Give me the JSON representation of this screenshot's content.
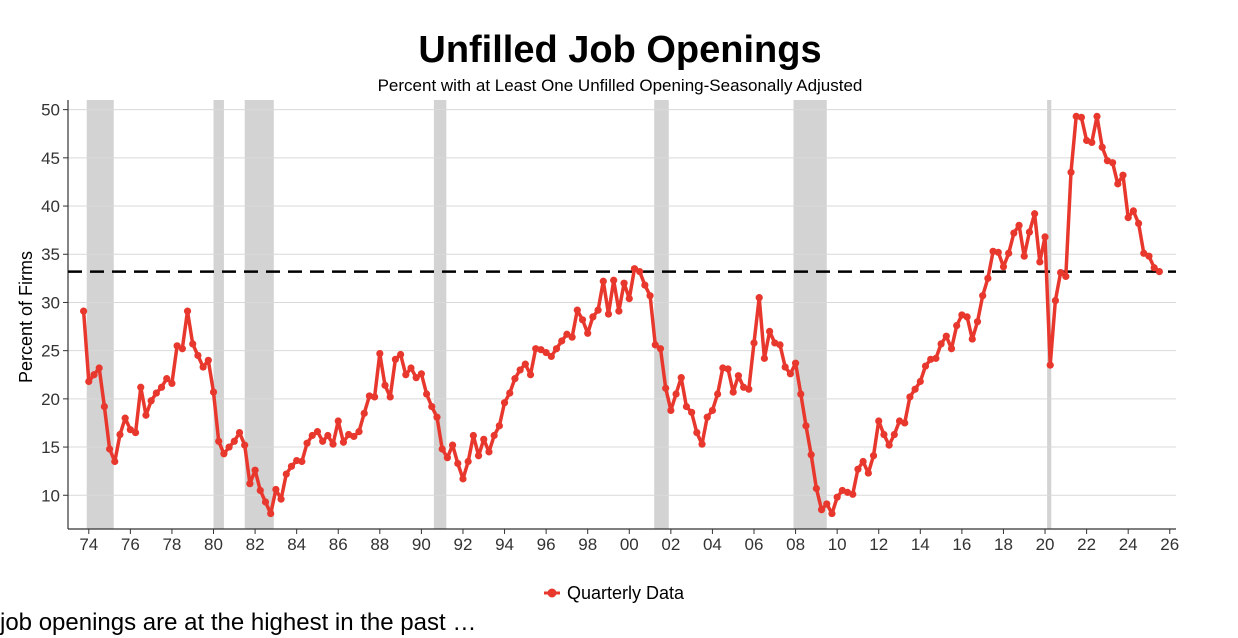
{
  "caption": "job openings are at the highest in the past …",
  "chart_data": {
    "type": "line",
    "title": "Unfilled Job Openings",
    "subtitle": "Percent with at Least One Unfilled Opening-Seasonally Adjusted",
    "ylabel": "Percent of Firms",
    "xlabel": "",
    "ylim": [
      6.5,
      51
    ],
    "xlim": [
      1973.0,
      2026.3
    ],
    "yticks": [
      10,
      15,
      20,
      25,
      30,
      35,
      40,
      45,
      50
    ],
    "xticks": [
      {
        "value": 1974,
        "label": "74"
      },
      {
        "value": 1976,
        "label": "76"
      },
      {
        "value": 1978,
        "label": "78"
      },
      {
        "value": 1980,
        "label": "80"
      },
      {
        "value": 1982,
        "label": "82"
      },
      {
        "value": 1984,
        "label": "84"
      },
      {
        "value": 1986,
        "label": "86"
      },
      {
        "value": 1988,
        "label": "88"
      },
      {
        "value": 1990,
        "label": "90"
      },
      {
        "value": 1992,
        "label": "92"
      },
      {
        "value": 1994,
        "label": "94"
      },
      {
        "value": 1996,
        "label": "96"
      },
      {
        "value": 1998,
        "label": "98"
      },
      {
        "value": 2000,
        "label": "00"
      },
      {
        "value": 2002,
        "label": "02"
      },
      {
        "value": 2004,
        "label": "04"
      },
      {
        "value": 2006,
        "label": "06"
      },
      {
        "value": 2008,
        "label": "08"
      },
      {
        "value": 2010,
        "label": "10"
      },
      {
        "value": 2012,
        "label": "12"
      },
      {
        "value": 2014,
        "label": "14"
      },
      {
        "value": 2016,
        "label": "16"
      },
      {
        "value": 2018,
        "label": "18"
      },
      {
        "value": 2020,
        "label": "20"
      },
      {
        "value": 2022,
        "label": "22"
      },
      {
        "value": 2024,
        "label": "24"
      },
      {
        "value": 2026,
        "label": "26"
      }
    ],
    "grid": "horizontal",
    "legend_position": "bottom",
    "reference_line": {
      "y": 33.2,
      "style": "dashed",
      "color": "#000000"
    },
    "recessions": [
      [
        1973.9,
        1975.2
      ],
      [
        1980.0,
        1980.5
      ],
      [
        1981.5,
        1982.9
      ],
      [
        1990.6,
        1991.2
      ],
      [
        2001.2,
        2001.9
      ],
      [
        2007.9,
        2009.5
      ],
      [
        2020.1,
        2020.3
      ]
    ],
    "colors": {
      "series": "#e8382e",
      "recession": "#d3d3d3",
      "grid": "#d9d9d9"
    },
    "series": [
      {
        "name": "Quarterly Data",
        "x": [
          1973.75,
          1974.0,
          1974.25,
          1974.5,
          1974.75,
          1975.0,
          1975.25,
          1975.5,
          1975.75,
          1976.0,
          1976.25,
          1976.5,
          1976.75,
          1977.0,
          1977.25,
          1977.5,
          1977.75,
          1978.0,
          1978.25,
          1978.5,
          1978.75,
          1979.0,
          1979.25,
          1979.5,
          1979.75,
          1980.0,
          1980.25,
          1980.5,
          1980.75,
          1981.0,
          1981.25,
          1981.5,
          1981.75,
          1982.0,
          1982.25,
          1982.5,
          1982.75,
          1983.0,
          1983.25,
          1983.5,
          1983.75,
          1984.0,
          1984.25,
          1984.5,
          1984.75,
          1985.0,
          1985.25,
          1985.5,
          1985.75,
          1986.0,
          1986.25,
          1986.5,
          1986.75,
          1987.0,
          1987.25,
          1987.5,
          1987.75,
          1988.0,
          1988.25,
          1988.5,
          1988.75,
          1989.0,
          1989.25,
          1989.5,
          1989.75,
          1990.0,
          1990.25,
          1990.5,
          1990.75,
          1991.0,
          1991.25,
          1991.5,
          1991.75,
          1992.0,
          1992.25,
          1992.5,
          1992.75,
          1993.0,
          1993.25,
          1993.5,
          1993.75,
          1994.0,
          1994.25,
          1994.5,
          1994.75,
          1995.0,
          1995.25,
          1995.5,
          1995.75,
          1996.0,
          1996.25,
          1996.5,
          1996.75,
          1997.0,
          1997.25,
          1997.5,
          1997.75,
          1998.0,
          1998.25,
          1998.5,
          1998.75,
          1999.0,
          1999.25,
          1999.5,
          1999.75,
          2000.0,
          2000.25,
          2000.5,
          2000.75,
          2001.0,
          2001.25,
          2001.5,
          2001.75,
          2002.0,
          2002.25,
          2002.5,
          2002.75,
          2003.0,
          2003.25,
          2003.5,
          2003.75,
          2004.0,
          2004.25,
          2004.5,
          2004.75,
          2005.0,
          2005.25,
          2005.5,
          2005.75,
          2006.0,
          2006.25,
          2006.5,
          2006.75,
          2007.0,
          2007.25,
          2007.5,
          2007.75,
          2008.0,
          2008.25,
          2008.5,
          2008.75,
          2009.0,
          2009.25,
          2009.5,
          2009.75,
          2010.0,
          2010.25,
          2010.5,
          2010.75,
          2011.0,
          2011.25,
          2011.5,
          2011.75,
          2012.0,
          2012.25,
          2012.5,
          2012.75,
          2013.0,
          2013.25,
          2013.5,
          2013.75,
          2014.0,
          2014.25,
          2014.5,
          2014.75,
          2015.0,
          2015.25,
          2015.5,
          2015.75,
          2016.0,
          2016.25,
          2016.5,
          2016.75,
          2017.0,
          2017.25,
          2017.5,
          2017.75,
          2018.0,
          2018.25,
          2018.5,
          2018.75,
          2019.0,
          2019.25,
          2019.5,
          2019.75,
          2020.0,
          2020.25,
          2020.5,
          2020.75,
          2021.0,
          2021.25,
          2021.5,
          2021.75,
          2022.0,
          2022.25,
          2022.5,
          2022.75,
          2023.0,
          2023.25,
          2023.5,
          2023.75,
          2024.0,
          2024.25,
          2024.5,
          2024.75,
          2025.0,
          2025.25,
          2025.5
        ],
        "values": [
          29.1,
          21.8,
          22.5,
          23.2,
          19.2,
          14.8,
          13.5,
          16.3,
          18.0,
          16.8,
          16.5,
          21.2,
          18.3,
          19.8,
          20.6,
          21.2,
          22.1,
          21.6,
          25.5,
          25.2,
          29.1,
          25.7,
          24.5,
          23.3,
          24.0,
          20.7,
          15.6,
          14.3,
          15.0,
          15.6,
          16.5,
          15.2,
          11.2,
          12.6,
          10.5,
          9.3,
          8.1,
          10.6,
          9.6,
          12.2,
          13.0,
          13.6,
          13.5,
          15.4,
          16.2,
          16.6,
          15.6,
          16.2,
          15.3,
          17.7,
          15.5,
          16.3,
          16.1,
          16.6,
          18.5,
          20.3,
          20.2,
          24.7,
          21.4,
          20.2,
          24.1,
          24.6,
          22.5,
          23.2,
          22.2,
          22.6,
          20.5,
          19.2,
          18.1,
          14.8,
          13.9,
          15.2,
          13.3,
          11.7,
          13.5,
          16.2,
          14.1,
          15.8,
          14.5,
          16.2,
          17.2,
          19.6,
          20.6,
          22.1,
          23.0,
          23.6,
          22.5,
          25.2,
          25.1,
          24.8,
          24.4,
          25.2,
          26.0,
          26.7,
          26.4,
          29.2,
          28.2,
          26.8,
          28.5,
          29.2,
          32.2,
          28.8,
          32.3,
          29.1,
          32.0,
          30.4,
          33.5,
          33.2,
          31.8,
          30.7,
          25.6,
          25.2,
          21.1,
          18.8,
          20.5,
          22.2,
          19.2,
          18.6,
          16.5,
          15.3,
          18.1,
          18.8,
          20.5,
          23.2,
          23.1,
          20.7,
          22.4,
          21.2,
          21.0,
          25.8,
          30.5,
          24.2,
          27.0,
          25.8,
          25.6,
          23.3,
          22.6,
          23.7,
          20.5,
          17.2,
          14.2,
          10.7,
          8.5,
          9.1,
          8.1,
          9.8,
          10.5,
          10.3,
          10.1,
          12.7,
          13.5,
          12.3,
          14.1,
          17.7,
          16.3,
          15.2,
          16.3,
          17.7,
          17.5,
          20.2,
          21.0,
          21.8,
          23.4,
          24.1,
          24.2,
          25.7,
          26.5,
          25.2,
          27.6,
          28.7,
          28.5,
          26.2,
          28.0,
          30.7,
          32.5,
          35.3,
          35.2,
          33.7,
          35.1,
          37.2,
          38.0,
          34.8,
          37.3,
          39.2,
          34.2,
          36.8,
          23.5,
          30.2,
          33.1,
          32.7,
          43.5,
          49.3,
          49.2,
          46.8,
          46.6,
          49.3,
          46.1,
          44.7,
          44.5,
          42.3,
          43.2,
          38.8,
          39.5,
          38.2,
          35.1,
          34.8,
          33.6,
          33.2
        ]
      }
    ]
  }
}
